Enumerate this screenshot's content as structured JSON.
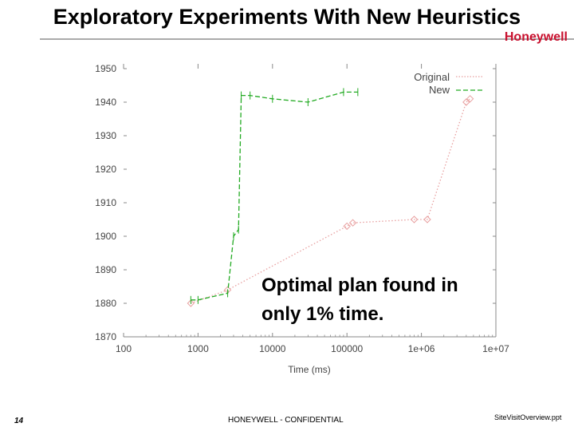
{
  "slide": {
    "title": "Exploratory Experiments With New Heuristics",
    "logo": "Honeywell",
    "annotation_line1": "Optimal plan found in",
    "annotation_line2": "only 1% time.",
    "page_number": "14",
    "confidential": "HONEYWELL - CONFIDENTIAL",
    "file_name": "SiteVisitOverview.ppt"
  },
  "colors": {
    "original": "#e8a0a0",
    "new": "#22aa22",
    "axis": "#888888",
    "logo": "#c8102e"
  },
  "chart_data": {
    "type": "line",
    "xlabel": "Time (ms)",
    "ylabel": "",
    "x_scale": "log",
    "xlim": [
      100,
      10000000
    ],
    "ylim": [
      1870,
      1950
    ],
    "x_ticks": [
      100,
      1000,
      10000,
      100000,
      1000000,
      10000000
    ],
    "x_tick_labels": [
      "100",
      "1000",
      "10000",
      "100000",
      "1e+06",
      "1e+07"
    ],
    "y_ticks": [
      1870,
      1880,
      1890,
      1900,
      1910,
      1920,
      1930,
      1940,
      1950
    ],
    "y_tick_labels": [
      "1870",
      "1880",
      "1890",
      "1900",
      "1910",
      "1920",
      "1930",
      "1940",
      "1950"
    ],
    "legend_position": "top-right",
    "series": [
      {
        "name": "Original",
        "style": "dotted",
        "points": [
          {
            "x": 800,
            "y": 1880
          },
          {
            "x": 2500,
            "y": 1884
          },
          {
            "x": 100000,
            "y": 1903
          },
          {
            "x": 120000,
            "y": 1904
          },
          {
            "x": 800000,
            "y": 1905
          },
          {
            "x": 1200000,
            "y": 1905
          },
          {
            "x": 4000000,
            "y": 1940
          },
          {
            "x": 4500000,
            "y": 1941
          }
        ]
      },
      {
        "name": "New",
        "style": "dashed",
        "points": [
          {
            "x": 800,
            "y": 1881
          },
          {
            "x": 1000,
            "y": 1881
          },
          {
            "x": 2500,
            "y": 1883
          },
          {
            "x": 3000,
            "y": 1900
          },
          {
            "x": 3500,
            "y": 1902
          },
          {
            "x": 3800,
            "y": 1942
          },
          {
            "x": 5000,
            "y": 1942
          },
          {
            "x": 10000,
            "y": 1941
          },
          {
            "x": 30000,
            "y": 1940
          },
          {
            "x": 90000,
            "y": 1943
          },
          {
            "x": 140000,
            "y": 1943
          }
        ]
      }
    ]
  }
}
